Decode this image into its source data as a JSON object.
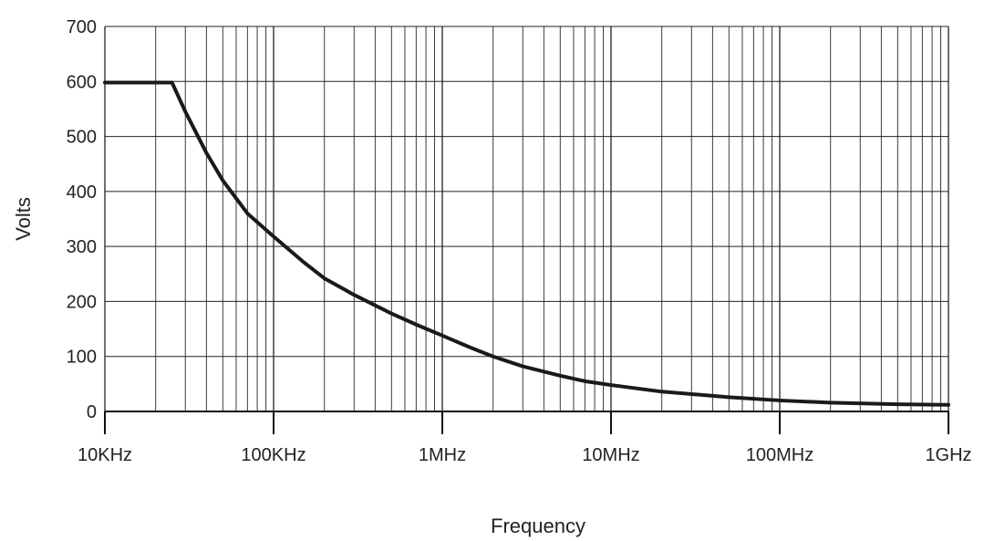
{
  "chart_data": {
    "type": "line",
    "title": "",
    "xlabel": "Frequency",
    "ylabel": "Volts",
    "xscale": "log",
    "xlim": [
      10000,
      1000000000
    ],
    "ylim": [
      0,
      700
    ],
    "grid": true,
    "legend": "none",
    "x_ticks": [
      {
        "value": 10000,
        "label": "10KHz"
      },
      {
        "value": 100000,
        "label": "100KHz"
      },
      {
        "value": 1000000,
        "label": "1MHz"
      },
      {
        "value": 10000000,
        "label": "10MHz"
      },
      {
        "value": 100000000,
        "label": "100MHz"
      },
      {
        "value": 1000000000,
        "label": "1GHz"
      }
    ],
    "y_ticks": [
      {
        "value": 0,
        "label": "0"
      },
      {
        "value": 100,
        "label": "100"
      },
      {
        "value": 200,
        "label": "200"
      },
      {
        "value": 300,
        "label": "300"
      },
      {
        "value": 400,
        "label": "400"
      },
      {
        "value": 500,
        "label": "500"
      },
      {
        "value": 600,
        "label": "600"
      },
      {
        "value": 700,
        "label": "700"
      }
    ],
    "series": [
      {
        "color": "#1a1a1a",
        "x": [
          10000,
          25000,
          30000,
          40000,
          50000,
          70000,
          100000,
          150000,
          200000,
          300000,
          500000,
          700000,
          1000000,
          1500000,
          2000000,
          3000000,
          5000000,
          7000000,
          10000000,
          20000000,
          50000000,
          100000000,
          200000000,
          500000000,
          1000000000
        ],
        "y": [
          598,
          598,
          545,
          470,
          420,
          360,
          318,
          272,
          242,
          212,
          178,
          158,
          138,
          115,
          100,
          82,
          65,
          55,
          48,
          36,
          26,
          20,
          16,
          13,
          12
        ]
      }
    ]
  }
}
